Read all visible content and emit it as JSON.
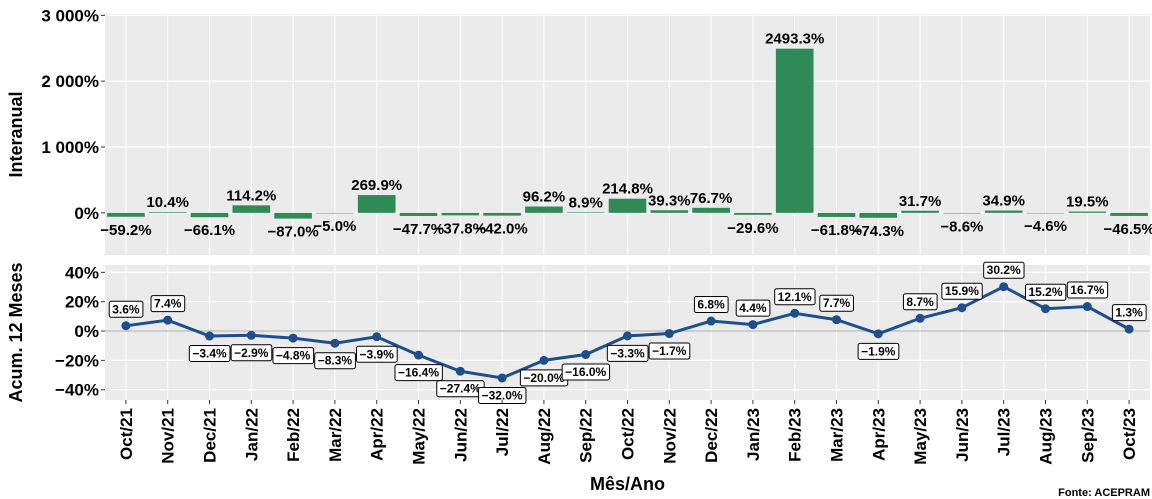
{
  "chart_data": [
    {
      "type": "bar",
      "y_label": "Interanual",
      "color": "#2e8b57",
      "values": [
        -59.2,
        10.4,
        -66.1,
        114.2,
        -87.0,
        -5.0,
        269.9,
        -47.7,
        -37.8,
        -42.0,
        96.2,
        8.9,
        214.8,
        39.3,
        76.7,
        -29.6,
        2493.3,
        -61.8,
        -74.3,
        31.7,
        -8.6,
        34.9,
        -4.6,
        19.5,
        -46.5
      ],
      "value_labels": [
        "−59.2%",
        "10.4%",
        "−66.1%",
        "114.2%",
        "−87.0%",
        "−5.0%",
        "269.9%",
        "−47.7%",
        "−37.8%",
        "−42.0%",
        "96.2%",
        "8.9%",
        "214.8%",
        "39.3%",
        "76.7%",
        "−29.6%",
        "2493.3%",
        "−61.8%",
        "−74.3%",
        "31.7%",
        "−8.6%",
        "34.9%",
        "−4.6%",
        "19.5%",
        "−46.5%"
      ],
      "ylim": [
        -640,
        3020
      ],
      "yticks": [
        {
          "value": 0,
          "label": "0%"
        },
        {
          "value": 1000,
          "label": "1 000%"
        },
        {
          "value": 2000,
          "label": "2 000%"
        },
        {
          "value": 3000,
          "label": "3 000%"
        }
      ],
      "grid": true
    },
    {
      "type": "line",
      "x_label": "Mês/Ano",
      "y_label": "Acum. 12 Meses",
      "color": "#1f4e8c",
      "categories": [
        "Oct/21",
        "Nov/21",
        "Dec/21",
        "Jan/22",
        "Feb/22",
        "Mar/22",
        "Apr/22",
        "May/22",
        "Jun/22",
        "Jul/22",
        "Aug/22",
        "Sep/22",
        "Oct/22",
        "Nov/22",
        "Dec/22",
        "Jan/23",
        "Feb/23",
        "Mar/23",
        "Apr/23",
        "May/23",
        "Jun/23",
        "Jul/23",
        "Aug/23",
        "Sep/23",
        "Oct/23"
      ],
      "values": [
        3.6,
        7.4,
        -3.4,
        -2.9,
        -4.8,
        -8.3,
        -3.9,
        -16.4,
        -27.4,
        -32.0,
        -20.0,
        -16.0,
        -3.3,
        -1.7,
        6.8,
        4.4,
        12.1,
        7.7,
        -1.9,
        8.7,
        15.9,
        30.2,
        15.2,
        16.7,
        1.3
      ],
      "value_labels": [
        "3.6%",
        "7.4%",
        "−3.4%",
        "−2.9%",
        "−4.8%",
        "−8.3%",
        "−3.9%",
        "−16.4%",
        "−27.4%",
        "−32.0%",
        "−20.0%",
        "−16.0%",
        "−3.3%",
        "−1.7%",
        "6.8%",
        "4.4%",
        "12.1%",
        "7.7%",
        "−1.9%",
        "8.7%",
        "15.9%",
        "30.2%",
        "15.2%",
        "16.7%",
        "1.3%"
      ],
      "ylim": [
        -47,
        45
      ],
      "yticks": [
        {
          "value": -40,
          "label": "−40%"
        },
        {
          "value": -20,
          "label": "−20%"
        },
        {
          "value": 0,
          "label": "0%"
        },
        {
          "value": 20,
          "label": "20%"
        },
        {
          "value": 40,
          "label": "40%"
        }
      ],
      "grid": true
    }
  ],
  "source": "Fonte: ACEPRAM"
}
